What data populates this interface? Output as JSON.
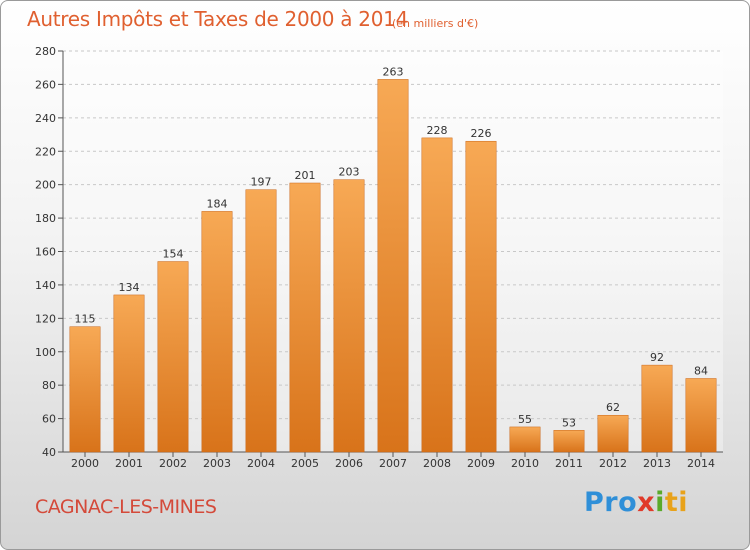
{
  "chart_data": {
    "type": "bar",
    "title": "Autres Impôts et Taxes de 2000 à 2014",
    "subtitle": "(en milliers d'€)",
    "categories": [
      "2000",
      "2001",
      "2002",
      "2003",
      "2004",
      "2005",
      "2006",
      "2007",
      "2008",
      "2009",
      "2010",
      "2011",
      "2012",
      "2013",
      "2014"
    ],
    "values": [
      115,
      134,
      154,
      184,
      197,
      201,
      203,
      263,
      228,
      226,
      55,
      53,
      62,
      92,
      84
    ],
    "xlabel": "",
    "ylabel": "",
    "ylim": [
      40,
      280
    ],
    "yticks": [
      40,
      60,
      80,
      100,
      120,
      140,
      160,
      180,
      200,
      220,
      240,
      260,
      280
    ],
    "grid": true,
    "bar_color": "#f0922e"
  },
  "footer": {
    "location": "CAGNAC-LES-MINES",
    "logo_parts": [
      "Pro",
      "x",
      "i",
      "ti"
    ]
  },
  "colors": {
    "title": "#e06030",
    "location": "#d44a3a"
  }
}
